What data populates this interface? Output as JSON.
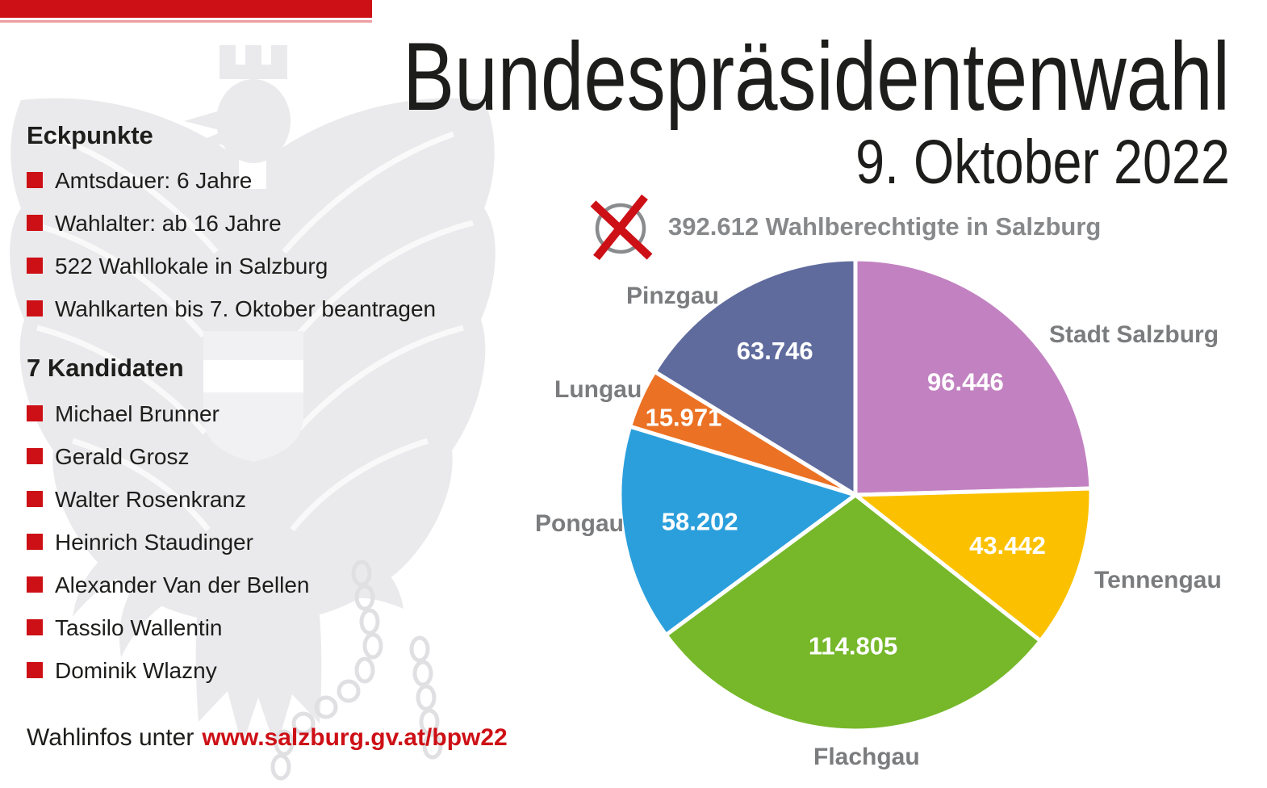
{
  "header": {
    "title": "Bundespräsidentenwahl",
    "subtitle": "9. Oktober 2022"
  },
  "eckpunkte": {
    "heading": "Eckpunkte",
    "items": [
      "Amtsdauer: 6 Jahre",
      "Wahlalter: ab 16 Jahre",
      "522 Wahllokale in Salzburg",
      "Wahlkarten bis 7. Oktober beantragen"
    ]
  },
  "kandidaten": {
    "heading": "7 Kandidaten",
    "items": [
      "Michael Brunner",
      "Gerald Grosz",
      "Walter Rosenkranz",
      "Heinrich Staudinger",
      "Alexander Van der Bellen",
      "Tassilo Wallentin",
      "Dominik Wlazny"
    ]
  },
  "footer": {
    "text": "Wahlinfos unter",
    "link": "www.salzburg.gv.at/bpw22"
  },
  "total": {
    "text": "392.612 Wahlberechtigte in Salzburg",
    "icon": "ballot-x-icon"
  },
  "icons": {
    "ballot": "ballot-x-icon",
    "bullet": "bullet-square-icon",
    "watermark": "austrian-eagle-watermark"
  },
  "colors": {
    "accent_red": "#cd1016",
    "text_dark": "#1d1d1b",
    "text_gray": "#87888a",
    "label_gray": "#7b7c7e",
    "watermark_gray": "#eaeaec"
  },
  "chart_data": {
    "type": "pie",
    "title": "392.612 Wahlberechtigte in Salzburg",
    "total": 392612,
    "start_angle_deg": 0,
    "direction": "clockwise-from-top",
    "categories": [
      "Stadt Salzburg",
      "Tennengau",
      "Flachgau",
      "Pongau",
      "Lungau",
      "Pinzgau"
    ],
    "values": [
      96446,
      43442,
      114805,
      58202,
      15971,
      63746
    ],
    "values_formatted": [
      "96.446",
      "43.442",
      "114.805",
      "58.202",
      "15.971",
      "63.746"
    ],
    "colors": [
      "#c282c1",
      "#fbc101",
      "#76b82a",
      "#2b9fdc",
      "#eb7124",
      "#5f6b9d"
    ],
    "separator_color": "#ffffff",
    "value_label_color": "#ffffff",
    "category_label_color": "#7b7c7e",
    "legend_position": "outside-labels"
  }
}
